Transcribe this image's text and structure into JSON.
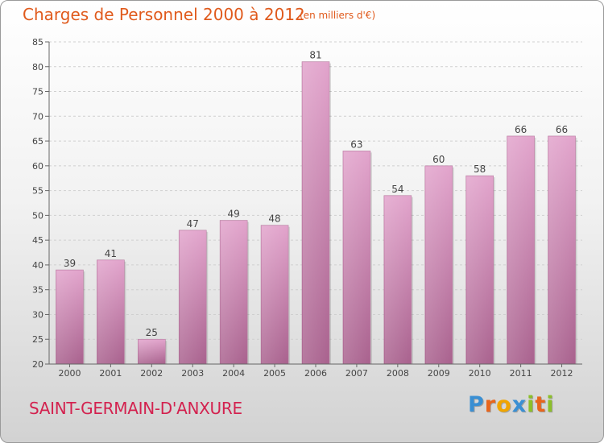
{
  "title": "Charges de Personnel 2000 à 2012",
  "subtitle": "(en milliers d'€)",
  "commune": "SAINT-GERMAIN-D'ANXURE",
  "logo": {
    "text": "Proxiti",
    "letters": [
      {
        "ch": "P",
        "color": "#3a8fd3"
      },
      {
        "ch": "r",
        "color": "#e8651c"
      },
      {
        "ch": "o",
        "color": "#f0a500"
      },
      {
        "ch": "x",
        "color": "#3a8fd3"
      },
      {
        "ch": "i",
        "color": "#8cbf2a"
      },
      {
        "ch": "t",
        "color": "#e8651c"
      },
      {
        "ch": "i",
        "color": "#8cbf2a"
      }
    ]
  },
  "colors": {
    "title": "#e05a1c",
    "commune": "#d3224f",
    "bar_top": "#e2a4cc",
    "bar_bottom": "#a9628e",
    "grid": "#cfcfcf",
    "axis_text": "#444444"
  },
  "chart_data": {
    "type": "bar",
    "categories": [
      "2000",
      "2001",
      "2002",
      "2003",
      "2004",
      "2005",
      "2006",
      "2007",
      "2008",
      "2009",
      "2010",
      "2011",
      "2012"
    ],
    "values": [
      39,
      41,
      25,
      47,
      49,
      48,
      81,
      63,
      54,
      60,
      58,
      66,
      66
    ],
    "ylim": [
      20,
      85
    ],
    "yticks": [
      20,
      25,
      30,
      35,
      40,
      45,
      50,
      55,
      60,
      65,
      70,
      75,
      80,
      85
    ],
    "grid": true,
    "legend": "none"
  }
}
